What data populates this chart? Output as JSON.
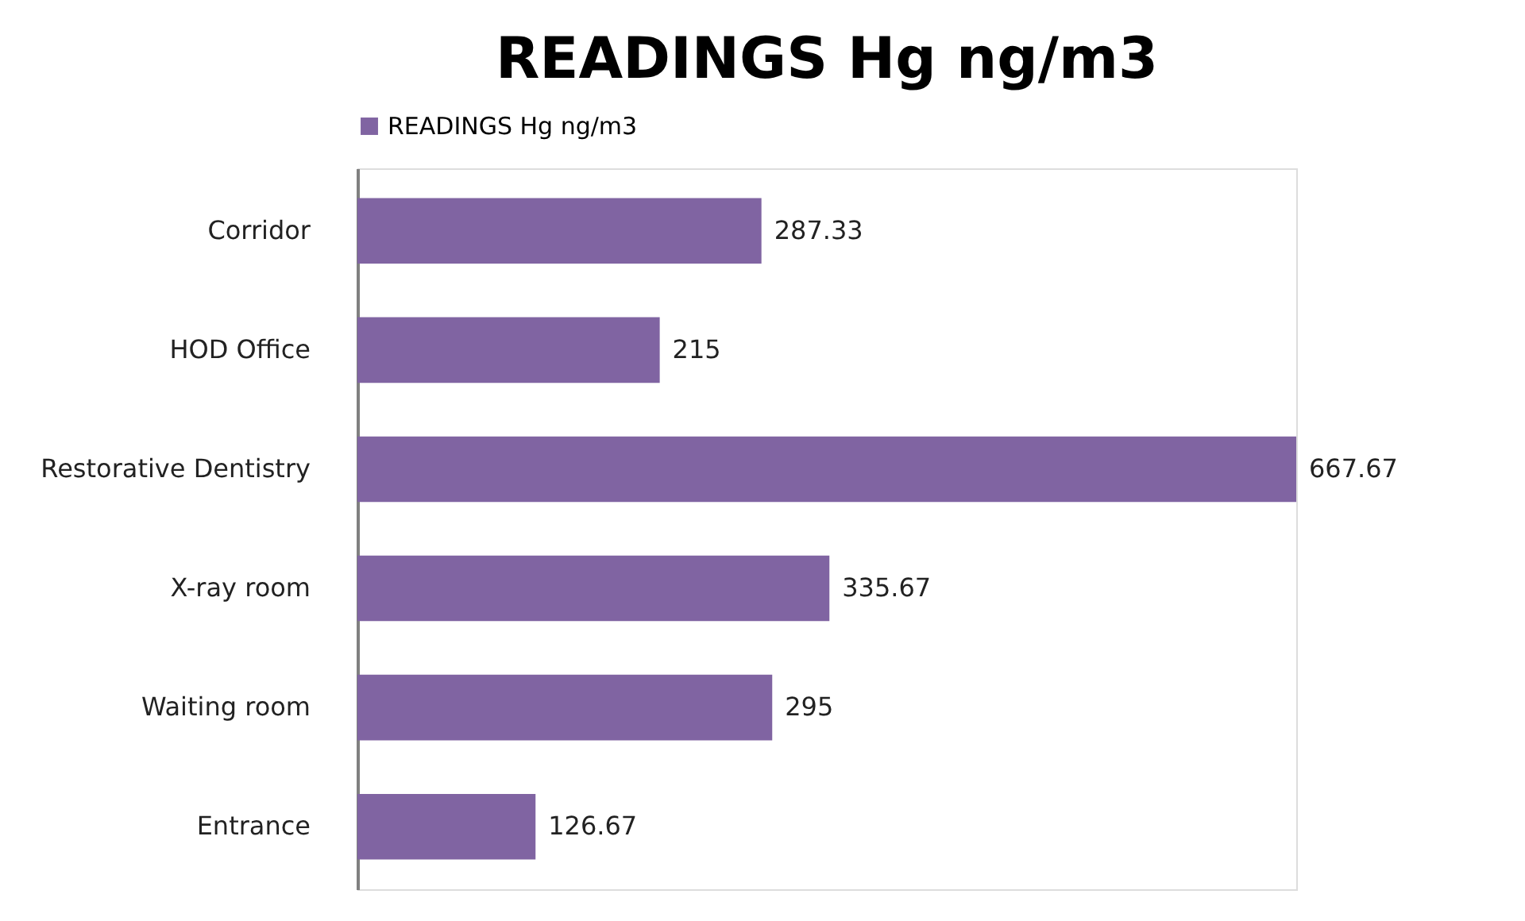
{
  "chart_data": {
    "type": "bar",
    "orientation": "horizontal",
    "title": "READINGS Hg ng/m3",
    "categories": [
      "Corridor",
      "HOD Office",
      "Restorative  Dentistry",
      "X-ray room",
      "Waiting room",
      "Entrance"
    ],
    "series": [
      {
        "name": "READINGS Hg ng/m3",
        "color": "#8064a2",
        "values": [
          287.33,
          215,
          667.67,
          335.67,
          295,
          126.67
        ]
      }
    ],
    "data_labels": true,
    "legend": "top",
    "grid": false,
    "tick_labels": "y"
  }
}
